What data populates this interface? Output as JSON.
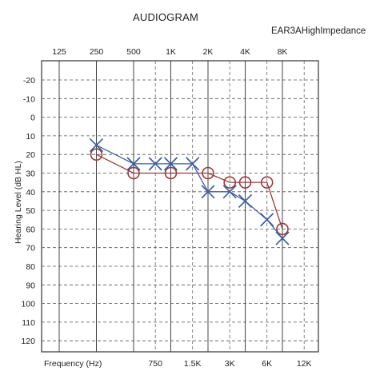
{
  "chart_data": {
    "type": "line",
    "title": "AUDIOGRAM",
    "subtitle": "EAR3AHighImpedance",
    "ylabel": "Hearing Level (dB HL)",
    "xlabel": "Frequency (Hz)",
    "y_ticks": [
      "-20",
      "-10",
      "0",
      "10",
      "20",
      "30",
      "40",
      "50",
      "60",
      "70",
      "80",
      "90",
      "100",
      "110",
      "120"
    ],
    "ylim": [
      -25,
      125
    ],
    "y_reversed": true,
    "top_freq_labels": [
      {
        "freq": 125,
        "label": "125"
      },
      {
        "freq": 250,
        "label": "250"
      },
      {
        "freq": 500,
        "label": "500"
      },
      {
        "freq": 1000,
        "label": "1K"
      },
      {
        "freq": 2000,
        "label": "2K"
      },
      {
        "freq": 4000,
        "label": "4K"
      },
      {
        "freq": 8000,
        "label": "8K"
      }
    ],
    "bottom_freq_labels": [
      {
        "freq": 750,
        "label": "750"
      },
      {
        "freq": 1500,
        "label": "1.5K"
      },
      {
        "freq": 3000,
        "label": "3K"
      },
      {
        "freq": 6000,
        "label": "6K"
      },
      {
        "freq": 12000,
        "label": "12K"
      }
    ],
    "series": [
      {
        "marker": "circle",
        "color": "#9a3a3a",
        "points": [
          {
            "freq": 250,
            "db": 20
          },
          {
            "freq": 500,
            "db": 30
          },
          {
            "freq": 1000,
            "db": 30
          },
          {
            "freq": 2000,
            "db": 30
          },
          {
            "freq": 3000,
            "db": 35
          },
          {
            "freq": 4000,
            "db": 35
          },
          {
            "freq": 6000,
            "db": 35
          },
          {
            "freq": 8000,
            "db": 60
          }
        ]
      },
      {
        "marker": "cross",
        "color": "#3d5fa0",
        "points": [
          {
            "freq": 250,
            "db": 15
          },
          {
            "freq": 500,
            "db": 25
          },
          {
            "freq": 750,
            "db": 25
          },
          {
            "freq": 1000,
            "db": 25
          },
          {
            "freq": 1500,
            "db": 25
          },
          {
            "freq": 2000,
            "db": 40
          },
          {
            "freq": 3000,
            "db": 40
          },
          {
            "freq": 4000,
            "db": 45
          },
          {
            "freq": 6000,
            "db": 55
          },
          {
            "freq": 8000,
            "db": 65
          }
        ]
      }
    ]
  }
}
